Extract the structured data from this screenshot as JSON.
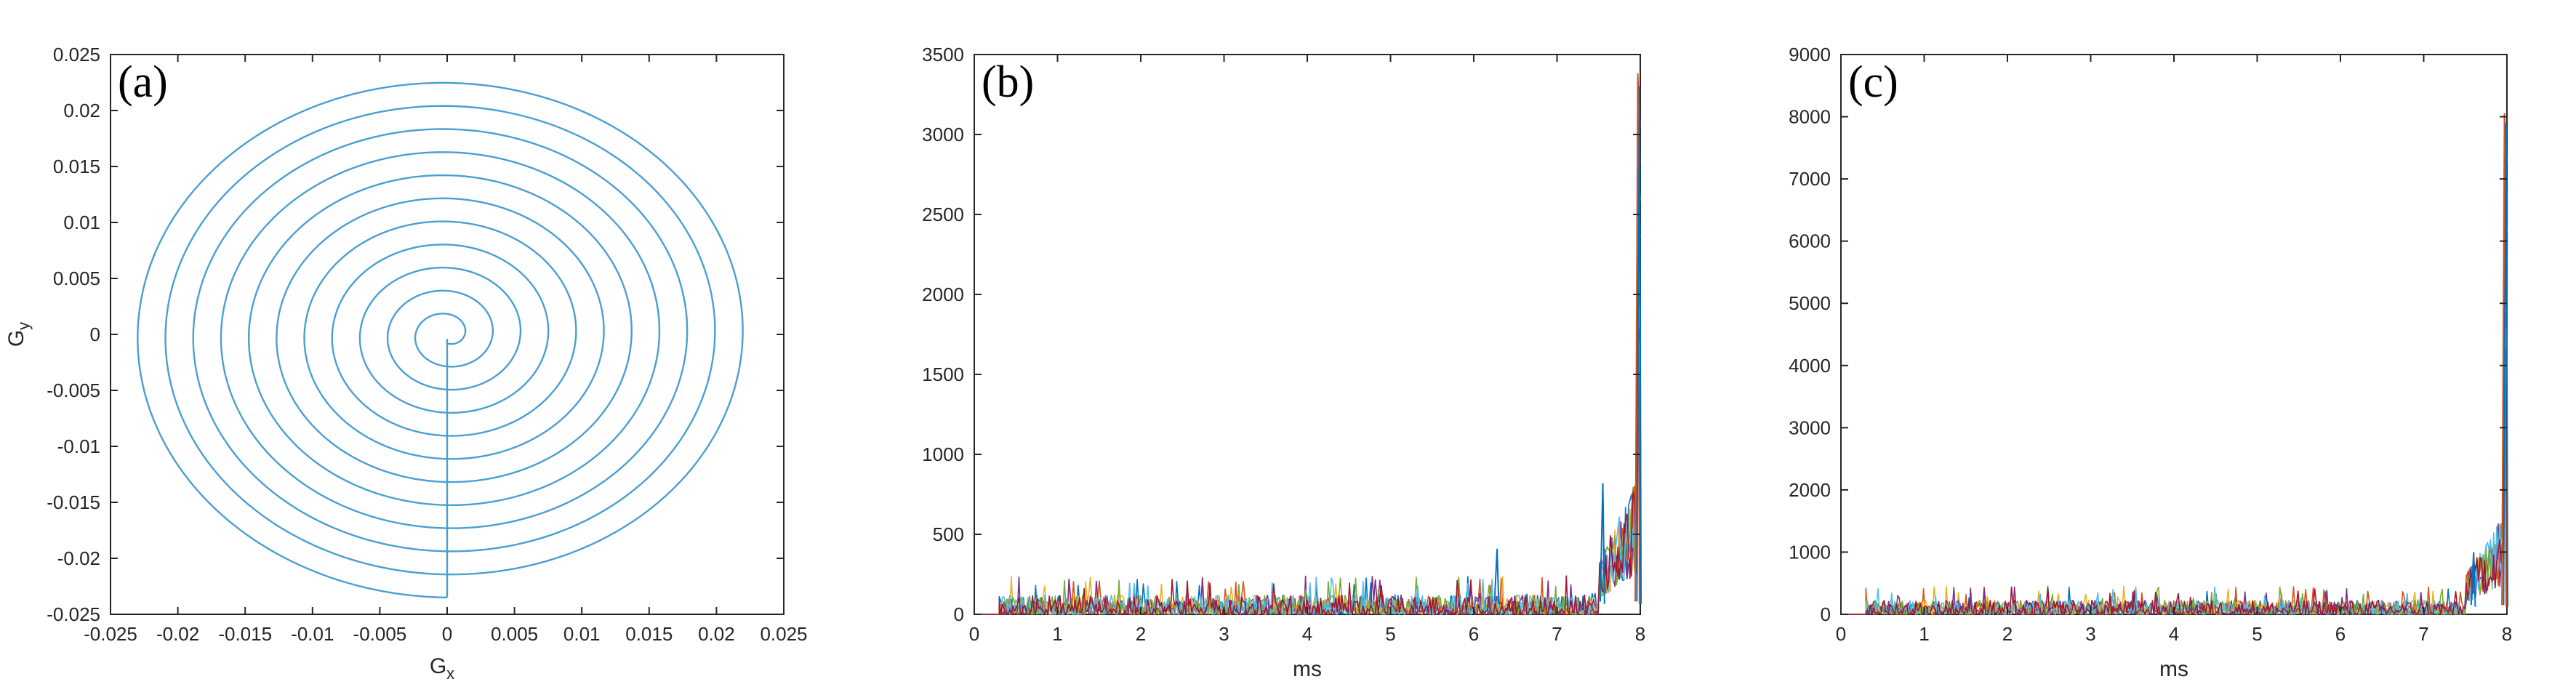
{
  "chart_data": [
    {
      "type": "line",
      "panel_label": "(a)",
      "xlabel": "G",
      "xlabel_sub": "x",
      "ylabel": "G",
      "ylabel_sub": "y",
      "xlim": [
        -0.025,
        0.025
      ],
      "ylim": [
        -0.025,
        0.025
      ],
      "xticks": [
        -0.025,
        -0.02,
        -0.015,
        -0.01,
        -0.005,
        0,
        0.005,
        0.01,
        0.015,
        0.02,
        0.025
      ],
      "xtick_labels": [
        "-0.025",
        "-0.02",
        "-0.015",
        "-0.01",
        "-0.005",
        "0",
        "0.005",
        "0.01",
        "0.015",
        "0.02",
        "0.025"
      ],
      "yticks": [
        0.025,
        0.02,
        0.015,
        0.01,
        0.005,
        0,
        -0.005,
        -0.01,
        -0.015,
        -0.02,
        -0.025
      ],
      "ytick_labels": [
        "0.025",
        "0.02",
        "0.015",
        "0.01",
        "0.005",
        "0",
        "-0.005",
        "-0.01",
        "-0.015",
        "-0.02",
        "-0.025"
      ],
      "grid": false,
      "series": [
        {
          "description": "spiral gradient trajectory",
          "color": "#4a9fd1",
          "spiral": {
            "turns": 11,
            "start_radius": 0.0008,
            "end_radius": 0.0235,
            "end_point": [
              0,
              -0.0235
            ]
          },
          "tail": {
            "x": [
              0,
              0
            ],
            "y": [
              -0.0235,
              -0.0004
            ]
          }
        }
      ]
    },
    {
      "type": "line",
      "panel_label": "(b)",
      "xlabel": "ms",
      "ylabel": "",
      "xlim": [
        0,
        8
      ],
      "ylim": [
        0,
        3500
      ],
      "xticks": [
        0,
        1,
        2,
        3,
        4,
        5,
        6,
        7,
        8
      ],
      "xtick_labels": [
        "0",
        "1",
        "2",
        "3",
        "4",
        "5",
        "6",
        "7",
        "8"
      ],
      "yticks": [
        0,
        500,
        1000,
        1500,
        2000,
        2500,
        3000,
        3500
      ],
      "ytick_labels": [
        "0",
        "500",
        "1000",
        "1500",
        "2000",
        "2500",
        "3000",
        "3500"
      ],
      "grid": false,
      "noise": {
        "start": 0.3,
        "end": 7.5,
        "max": 240,
        "typical": 80
      },
      "peaks": [
        {
          "x": 7.55,
          "y": 820
        },
        {
          "x": 6.28,
          "y": 410
        },
        {
          "x": 7.97,
          "y": 3380
        },
        {
          "x": 7.99,
          "y": 3300
        }
      ],
      "series_colors": [
        "#0072bd",
        "#d95319",
        "#edb120",
        "#7e2f8e",
        "#77ac30",
        "#4dbeee",
        "#a2142f"
      ]
    },
    {
      "type": "line",
      "panel_label": "(c)",
      "xlabel": "ms",
      "ylabel": "",
      "xlim": [
        0,
        8
      ],
      "ylim": [
        0,
        9000
      ],
      "xticks": [
        0,
        1,
        2,
        3,
        4,
        5,
        6,
        7,
        8
      ],
      "xtick_labels": [
        "0",
        "1",
        "2",
        "3",
        "4",
        "5",
        "6",
        "7",
        "8"
      ],
      "yticks": [
        0,
        1000,
        2000,
        3000,
        4000,
        5000,
        6000,
        7000,
        8000,
        9000
      ],
      "ytick_labels": [
        "0",
        "1000",
        "2000",
        "3000",
        "4000",
        "5000",
        "6000",
        "7000",
        "8000",
        "9000"
      ],
      "grid": false,
      "noise": {
        "start": 0.3,
        "end": 7.5,
        "max": 450,
        "typical": 150
      },
      "peaks": [
        {
          "x": 7.6,
          "y": 1000
        },
        {
          "x": 7.97,
          "y": 8050
        },
        {
          "x": 7.99,
          "y": 7900
        }
      ],
      "series_colors": [
        "#0072bd",
        "#d95319",
        "#edb120",
        "#7e2f8e",
        "#77ac30",
        "#4dbeee",
        "#a2142f"
      ]
    }
  ]
}
